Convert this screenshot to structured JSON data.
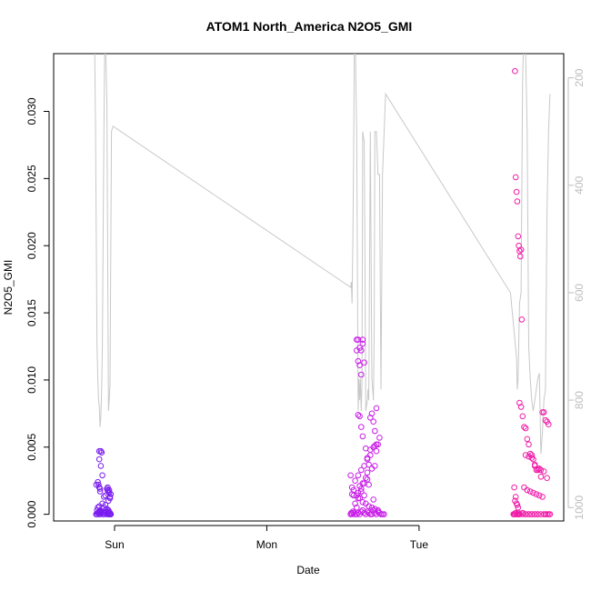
{
  "chart_data": {
    "type": "scatter",
    "title": "ATOM1 North_America N2O5_GMI",
    "xlabel": "Date",
    "ylabel": "N2O5_GMI",
    "x_ticks": [
      {
        "label": "Sun",
        "value": 1.0
      },
      {
        "label": "Mon",
        "value": 2.0
      },
      {
        "label": "Tue",
        "value": 3.0
      }
    ],
    "y_ticks": [
      0.0,
      0.005,
      0.01,
      0.015,
      0.02,
      0.025,
      0.03
    ],
    "y_tick_labels": [
      "0.000",
      "0.005",
      "0.010",
      "0.015",
      "0.020",
      "0.025",
      "0.030"
    ],
    "y2_ticks": [
      200,
      400,
      600,
      800,
      1000
    ],
    "y2_tick_labels": [
      "200",
      "400",
      "600",
      "800",
      "1000"
    ],
    "xlim": [
      0.6,
      3.95
    ],
    "ylim": [
      -0.0005,
      0.0343
    ],
    "y2lim": [
      1025,
      155
    ],
    "grid": false,
    "colors": {
      "points_early": "#7a1cf0",
      "points_mid": "#c81ce8",
      "points_late": "#f01ca8",
      "pressure_line": "#c8c8c8",
      "right_axis": "#bdbdbd"
    },
    "series": [
      {
        "type": "scatter",
        "axis": "left",
        "x": [
          0.88,
          0.885,
          0.89,
          0.895,
          0.9,
          0.905,
          0.91,
          0.915,
          0.92,
          0.925,
          0.93,
          0.935,
          0.94,
          0.945,
          0.95,
          0.955,
          0.96,
          0.965,
          0.97,
          0.975,
          0.88,
          0.885,
          0.89,
          0.9,
          0.905,
          0.91,
          0.92,
          0.93,
          0.94,
          0.95,
          0.96,
          0.97,
          0.975,
          0.9,
          0.91,
          0.915,
          0.9,
          0.91,
          0.92,
          0.895,
          0.905,
          0.95,
          0.955,
          0.96,
          0.965,
          0.97,
          0.96,
          0.955,
          0.965,
          0.88,
          0.89,
          0.9,
          0.905,
          0.93,
          0.94,
          0.97,
          0.895,
          0.9,
          0.905,
          0.96,
          0.97,
          0.975
        ],
        "y": [
          0.0,
          0.0,
          0.0001,
          0.0001,
          0.0,
          0.0,
          0.0001,
          0.0002,
          0.0001,
          0.0,
          0.0,
          0.0001,
          0.0003,
          0.0002,
          0.0,
          0.0,
          0.0001,
          0.0,
          0.0,
          0.0,
          0.0,
          0.0003,
          0.0005,
          0.0006,
          0.0002,
          0.0001,
          0.0008,
          0.0005,
          0.0007,
          0.0004,
          0.0003,
          0.0012,
          0.0015,
          0.0047,
          0.0047,
          0.0046,
          0.0041,
          0.0036,
          0.0029,
          0.0022,
          0.0019,
          0.0019,
          0.0018,
          0.0017,
          0.0016,
          0.0013,
          0.001,
          0.002,
          0.0018,
          0.0022,
          0.0024,
          0.002,
          0.0017,
          0.0013,
          0.0014,
          0.0,
          0.0001,
          0.0002,
          0.0003,
          0.0002,
          0.0001,
          0.0
        ]
      },
      {
        "type": "scatter",
        "axis": "left",
        "x": [
          2.55,
          2.555,
          2.56,
          2.565,
          2.57,
          2.58,
          2.59,
          2.6,
          2.61,
          2.62,
          2.63,
          2.64,
          2.65,
          2.66,
          2.67,
          2.68,
          2.69,
          2.7,
          2.71,
          2.72,
          2.73,
          2.74,
          2.75,
          2.76,
          2.77,
          2.55,
          2.56,
          2.57,
          2.58,
          2.59,
          2.6,
          2.61,
          2.62,
          2.63,
          2.64,
          2.65,
          2.66,
          2.67,
          2.68,
          2.69,
          2.7,
          2.71,
          2.72,
          2.73,
          2.74,
          2.59,
          2.6,
          2.61,
          2.62,
          2.63,
          2.64,
          2.59,
          2.6,
          2.61,
          2.62,
          2.63,
          2.6,
          2.61,
          2.62,
          2.63,
          2.65,
          2.66,
          2.67,
          2.68,
          2.69,
          2.7,
          2.71,
          2.72,
          2.72,
          2.71,
          2.7,
          2.68,
          2.66,
          2.64,
          2.62,
          2.6,
          2.58,
          2.56,
          2.57,
          2.59,
          2.61,
          2.63,
          2.65,
          2.67,
          2.69,
          2.71,
          2.73,
          2.6,
          2.62,
          2.64,
          2.66
        ],
        "y": [
          0.0,
          0.0001,
          0.0,
          0.0002,
          0.0001,
          0.0,
          0.0,
          0.0001,
          0.0,
          0.0002,
          0.0003,
          0.0001,
          0.0,
          0.0002,
          0.0001,
          0.0,
          0.0,
          0.0003,
          0.0001,
          0.0,
          0.0002,
          0.0001,
          0.0,
          0.0,
          0.0,
          0.0029,
          0.0015,
          0.0014,
          0.0008,
          0.0005,
          0.0012,
          0.0021,
          0.0017,
          0.0023,
          0.0014,
          0.0027,
          0.0031,
          0.0022,
          0.0048,
          0.0034,
          0.0011,
          0.0036,
          0.0047,
          0.0052,
          0.0057,
          0.013,
          0.013,
          0.0124,
          0.0122,
          0.0127,
          0.0113,
          0.0122,
          0.0114,
          0.0111,
          0.0104,
          0.013,
          0.0074,
          0.0073,
          0.0065,
          0.0058,
          0.0049,
          0.0041,
          0.0037,
          0.0072,
          0.0075,
          0.0069,
          0.0062,
          0.0079,
          0.0052,
          0.0051,
          0.005,
          0.0044,
          0.0042,
          0.0036,
          0.0033,
          0.0029,
          0.0025,
          0.002,
          0.0018,
          0.0014,
          0.0012,
          0.0009,
          0.0008,
          0.0006,
          0.0005,
          0.0004,
          0.0003,
          0.0016,
          0.0019,
          0.0023,
          0.0026
        ]
      },
      {
        "type": "scatter",
        "axis": "left",
        "x": [
          3.63,
          3.635,
          3.64,
          3.645,
          3.65,
          3.655,
          3.66,
          3.665,
          3.67,
          3.675,
          3.68,
          3.7,
          3.72,
          3.74,
          3.76,
          3.78,
          3.8,
          3.82,
          3.84,
          3.62,
          3.625,
          3.63,
          3.635,
          3.64,
          3.645,
          3.65,
          3.655,
          3.66,
          3.625,
          3.63,
          3.635,
          3.64,
          3.645,
          3.65,
          3.66,
          3.67,
          3.68,
          3.69,
          3.7,
          3.71,
          3.72,
          3.73,
          3.74,
          3.75,
          3.76,
          3.77,
          3.78,
          3.79,
          3.8,
          3.81,
          3.82,
          3.83,
          3.84,
          3.85,
          3.7,
          3.72,
          3.74,
          3.76,
          3.78,
          3.8,
          3.82,
          3.84,
          3.69,
          3.71,
          3.73,
          3.75,
          3.77,
          3.79,
          3.81,
          3.83,
          3.85,
          3.86,
          3.66,
          3.68,
          3.7,
          3.72,
          3.74,
          3.76,
          3.78
        ],
        "y": [
          0.033,
          0.0251,
          0.024,
          0.0233,
          0.0207,
          0.02,
          0.0196,
          0.0192,
          0.0197,
          0.0145,
          0.0,
          0.0,
          0.0,
          0.0,
          0.0,
          0.0,
          0.0,
          0.0,
          0.0,
          0.0,
          0.0,
          0.0,
          0.0001,
          0.0,
          0.0,
          0.0001,
          0.0,
          0.0,
          0.002,
          0.001,
          0.0013,
          0.0008,
          0.0007,
          0.0005,
          0.0083,
          0.008,
          0.0073,
          0.0065,
          0.0064,
          0.0056,
          0.0052,
          0.0045,
          0.0044,
          0.0041,
          0.0036,
          0.0033,
          0.0033,
          0.0034,
          0.0028,
          0.0076,
          0.0076,
          0.007,
          0.0069,
          0.0067,
          0.0044,
          0.0043,
          0.0042,
          0.0037,
          0.0034,
          0.0033,
          0.0032,
          0.0027,
          0.002,
          0.0018,
          0.0017,
          0.0016,
          0.0015,
          0.0014,
          0.0013,
          0.0,
          0.0,
          0.0,
          0.0,
          0.0001,
          0.0,
          0.0,
          0.0,
          0.0,
          0.0
        ]
      },
      {
        "type": "line",
        "axis": "right",
        "x": [
          0.87,
          0.875,
          0.88,
          0.885,
          0.89,
          0.895,
          0.9,
          0.905,
          0.91,
          0.915,
          0.92,
          0.925,
          0.93,
          0.935,
          0.94,
          0.95,
          0.96,
          0.965,
          0.97,
          0.98,
          0.99,
          2.55,
          2.555,
          2.56,
          2.565,
          2.57,
          2.575,
          2.58,
          2.59,
          2.6,
          2.605,
          2.61,
          2.615,
          2.62,
          2.625,
          2.63,
          2.64,
          2.65,
          2.66,
          2.665,
          2.67,
          2.68,
          2.69,
          2.7,
          2.705,
          2.71,
          2.72,
          2.73,
          2.74,
          2.75,
          2.76,
          2.78,
          3.6,
          3.64,
          3.645,
          3.65,
          3.66,
          3.67,
          3.68,
          3.69,
          3.7,
          3.71,
          3.72,
          3.73,
          3.74,
          3.75,
          3.76,
          3.77,
          3.78,
          3.79,
          3.8,
          3.81,
          3.82,
          3.83,
          3.84,
          3.85,
          3.86
        ],
        "y": [
          150,
          300,
          500,
          700,
          760,
          800,
          810,
          850,
          830,
          780,
          700,
          500,
          300,
          150,
          120,
          250,
          820,
          800,
          770,
          300,
          290,
          590,
          580,
          620,
          500,
          350,
          150,
          120,
          300,
          820,
          760,
          800,
          760,
          820,
          770,
          300,
          320,
          820,
          800,
          780,
          800,
          300,
          760,
          800,
          680,
          300,
          300,
          380,
          380,
          780,
          380,
          230,
          600,
          720,
          780,
          760,
          620,
          600,
          200,
          100,
          150,
          300,
          700,
          760,
          800,
          820,
          800,
          780,
          760,
          750,
          900,
          860,
          800,
          780,
          450,
          300,
          230
        ]
      }
    ]
  }
}
